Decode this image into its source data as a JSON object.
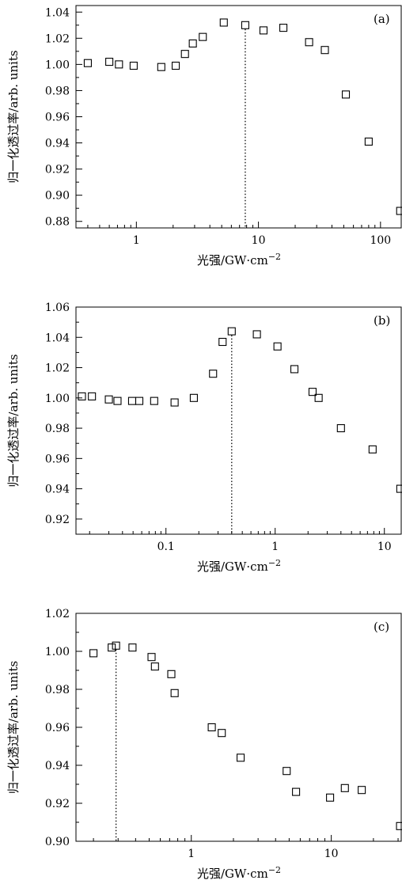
{
  "chart_data": [
    {
      "type": "scatter",
      "panel_label": "(a)",
      "x_scale": "log",
      "xlim": [
        0.32,
        150
      ],
      "ylim": [
        0.875,
        1.045
      ],
      "xticks": [
        1,
        10,
        100
      ],
      "xtick_labels": [
        "1",
        "10",
        "100"
      ],
      "yticks": [
        0.88,
        0.9,
        0.92,
        0.94,
        0.96,
        0.98,
        1.0,
        1.02,
        1.04
      ],
      "ytick_labels": [
        "0.88",
        "0.90",
        "0.92",
        "0.94",
        "0.96",
        "0.98",
        "1.00",
        "1.02",
        "1.04"
      ],
      "xlabel": "光强/GW·cm",
      "xlabel_sup": "−2",
      "ylabel": "归一化透过率/arb. units",
      "marker": "open-square",
      "vline_x": 7.8,
      "x": [
        0.4,
        0.6,
        0.72,
        0.95,
        1.6,
        2.1,
        2.5,
        2.9,
        3.5,
        5.2,
        7.8,
        11,
        16,
        26,
        35,
        52,
        80,
        145
      ],
      "y": [
        1.001,
        1.002,
        1.0,
        0.999,
        0.998,
        0.999,
        1.008,
        1.016,
        1.021,
        1.032,
        1.03,
        1.026,
        1.028,
        1.017,
        1.011,
        0.977,
        0.941,
        0.888
      ]
    },
    {
      "type": "scatter",
      "panel_label": "(b)",
      "x_scale": "log",
      "xlim": [
        0.015,
        14.5
      ],
      "ylim": [
        0.91,
        1.06
      ],
      "xticks": [
        0.1,
        1,
        10
      ],
      "xtick_labels": [
        "0.1",
        "1",
        "10"
      ],
      "yticks": [
        0.92,
        0.94,
        0.96,
        0.98,
        1.0,
        1.02,
        1.04,
        1.06
      ],
      "ytick_labels": [
        "0.92",
        "0.94",
        "0.96",
        "0.98",
        "1.00",
        "1.02",
        "1.04",
        "1.06"
      ],
      "xlabel": "光强/GW·cm",
      "xlabel_sup": "−2",
      "ylabel": "归一化透过率/arb. units",
      "marker": "open-square",
      "vline_x": 0.4,
      "x": [
        0.017,
        0.021,
        0.03,
        0.036,
        0.049,
        0.057,
        0.078,
        0.12,
        0.18,
        0.27,
        0.33,
        0.4,
        0.68,
        1.05,
        1.5,
        2.2,
        2.5,
        4,
        7.8,
        14
      ],
      "y": [
        1.001,
        1.001,
        0.999,
        0.998,
        0.998,
        0.998,
        0.998,
        0.997,
        1.0,
        1.016,
        1.037,
        1.044,
        1.042,
        1.034,
        1.019,
        1.004,
        1.0,
        0.98,
        0.966,
        0.94
      ]
    },
    {
      "type": "scatter",
      "panel_label": "(c)",
      "x_scale": "log",
      "xlim": [
        0.15,
        32
      ],
      "ylim": [
        0.9,
        1.02
      ],
      "xticks": [
        1,
        10
      ],
      "xtick_labels": [
        "1",
        "10"
      ],
      "yticks": [
        0.9,
        0.92,
        0.94,
        0.96,
        0.98,
        1.0,
        1.02
      ],
      "ytick_labels": [
        "0.90",
        "0.92",
        "0.94",
        "0.96",
        "0.98",
        "1.00",
        "1.02"
      ],
      "xlabel": "光强/GW·cm",
      "xlabel_sup": "−2",
      "ylabel": "归一化透过率/arb. units",
      "marker": "open-square",
      "vline_x": 0.29,
      "x": [
        0.2,
        0.27,
        0.29,
        0.38,
        0.52,
        0.55,
        0.72,
        0.76,
        1.4,
        1.65,
        2.25,
        4.8,
        5.6,
        9.8,
        12.5,
        16.5,
        31
      ],
      "y": [
        0.999,
        1.002,
        1.003,
        1.002,
        0.997,
        0.992,
        0.988,
        0.978,
        0.96,
        0.957,
        0.944,
        0.937,
        0.926,
        0.923,
        0.928,
        0.927,
        0.908
      ]
    }
  ]
}
